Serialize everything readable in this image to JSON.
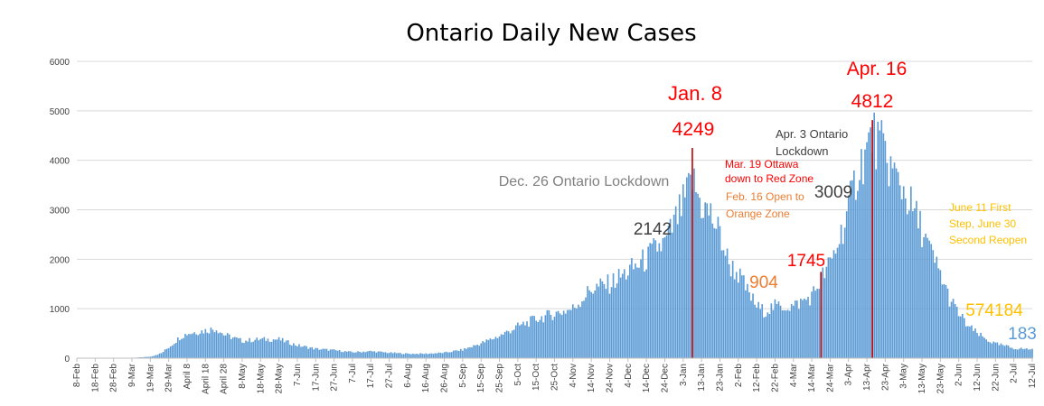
{
  "chart_data": {
    "type": "bar",
    "title": "Ontario Daily New Cases",
    "xlabel": "",
    "ylabel": "",
    "ylim": [
      0,
      6000
    ],
    "yticks": [
      0,
      1000,
      2000,
      3000,
      4000,
      5000,
      6000
    ],
    "grid": true,
    "start_date": "2020-02-08",
    "end_date": "2021-07-12",
    "xtick_labels": [
      "8-Feb",
      "18-Feb",
      "28-Feb",
      "9-Mar",
      "19-Mar",
      "29-Mar",
      "April 8",
      "April 18",
      "April 28",
      "8-May",
      "18-May",
      "28-May",
      "7-Jun",
      "17-Jun",
      "27-Jun",
      "7-Jul",
      "17-Jul",
      "27-Jul",
      "6-Aug",
      "16-Aug",
      "26-Aug",
      "5-Sep",
      "15-Sep",
      "25-Sep",
      "5-Oct",
      "15-Oct",
      "25-Oct",
      "4-Nov",
      "14-Nov",
      "24-Nov",
      "4-Dec",
      "14-Dec",
      "24-Dec",
      "3-Jan",
      "13-Jan",
      "23-Jan",
      "2-Feb",
      "12-Feb",
      "22-Feb",
      "4-Mar",
      "14-Mar",
      "24-Mar",
      "3-Apr",
      "13-Apr",
      "23-Apr",
      "3-May",
      "13-May",
      "23-May",
      "2-Jun",
      "12-Jun",
      "22-Jun",
      "2-Jul",
      "12-Jul"
    ],
    "series": [
      {
        "color": "#5b9bd5",
        "anchors": [
          [
            "2020-02-08",
            0
          ],
          [
            "2020-02-28",
            2
          ],
          [
            "2020-03-09",
            5
          ],
          [
            "2020-03-19",
            30
          ],
          [
            "2020-03-25",
            100
          ],
          [
            "2020-03-30",
            250
          ],
          [
            "2020-04-04",
            420
          ],
          [
            "2020-04-08",
            500
          ],
          [
            "2020-04-18",
            560
          ],
          [
            "2020-04-24",
            600
          ],
          [
            "2020-04-28",
            480
          ],
          [
            "2020-05-08",
            350
          ],
          [
            "2020-05-18",
            380
          ],
          [
            "2020-05-28",
            380
          ],
          [
            "2020-06-07",
            260
          ],
          [
            "2020-06-17",
            190
          ],
          [
            "2020-06-27",
            160
          ],
          [
            "2020-07-07",
            120
          ],
          [
            "2020-07-17",
            140
          ],
          [
            "2020-07-27",
            110
          ],
          [
            "2020-08-06",
            90
          ],
          [
            "2020-08-16",
            90
          ],
          [
            "2020-08-26",
            110
          ],
          [
            "2020-09-05",
            170
          ],
          [
            "2020-09-15",
            300
          ],
          [
            "2020-09-25",
            450
          ],
          [
            "2020-10-05",
            640
          ],
          [
            "2020-10-15",
            790
          ],
          [
            "2020-10-25",
            900
          ],
          [
            "2020-11-04",
            1000
          ],
          [
            "2020-11-14",
            1400
          ],
          [
            "2020-11-24",
            1500
          ],
          [
            "2020-12-04",
            1750
          ],
          [
            "2020-12-14",
            2000
          ],
          [
            "2020-12-20",
            2250
          ],
          [
            "2020-12-24",
            2300
          ],
          [
            "2020-12-29",
            2700
          ],
          [
            "2021-01-03",
            3100
          ],
          [
            "2021-01-08",
            3600
          ],
          [
            "2021-01-13",
            3100
          ],
          [
            "2021-01-18",
            2900
          ],
          [
            "2021-01-23",
            2500
          ],
          [
            "2021-01-28",
            1900
          ],
          [
            "2021-02-02",
            1700
          ],
          [
            "2021-02-07",
            1350
          ],
          [
            "2021-02-12",
            1050
          ],
          [
            "2021-02-16",
            950
          ],
          [
            "2021-02-22",
            1050
          ],
          [
            "2021-03-04",
            1050
          ],
          [
            "2021-03-14",
            1250
          ],
          [
            "2021-03-19",
            1600
          ],
          [
            "2021-03-24",
            1900
          ],
          [
            "2021-03-28",
            2300
          ],
          [
            "2021-04-03",
            3000
          ],
          [
            "2021-04-08",
            3800
          ],
          [
            "2021-04-13",
            4200
          ],
          [
            "2021-04-16",
            4500
          ],
          [
            "2021-04-20",
            4300
          ],
          [
            "2021-04-23",
            4100
          ],
          [
            "2021-04-28",
            3700
          ],
          [
            "2021-05-03",
            3400
          ],
          [
            "2021-05-08",
            3000
          ],
          [
            "2021-05-13",
            2600
          ],
          [
            "2021-05-18",
            2100
          ],
          [
            "2021-05-23",
            1700
          ],
          [
            "2021-05-28",
            1200
          ],
          [
            "2021-06-02",
            900
          ],
          [
            "2021-06-07",
            650
          ],
          [
            "2021-06-12",
            500
          ],
          [
            "2021-06-17",
            380
          ],
          [
            "2021-06-22",
            290
          ],
          [
            "2021-06-27",
            250
          ],
          [
            "2021-07-02",
            200
          ],
          [
            "2021-07-07",
            190
          ],
          [
            "2021-07-12",
            180
          ]
        ]
      }
    ],
    "markers": [
      {
        "date": "2021-01-08",
        "value": 4249,
        "color": "#c00000"
      },
      {
        "date": "2021-03-19",
        "value": 1745,
        "color": "#c00000"
      },
      {
        "date": "2021-04-16",
        "value": 4812,
        "color": "#c00000"
      }
    ],
    "annotations": [
      {
        "lines": [
          "Jan. 8"
        ],
        "color": "#ff0000"
      },
      {
        "lines": [
          "4249"
        ],
        "color": "#ff0000"
      },
      {
        "lines": [
          "Apr. 16"
        ],
        "color": "#ff0000"
      },
      {
        "lines": [
          "4812"
        ],
        "color": "#ff0000"
      },
      {
        "lines": [
          "Dec. 26 Ontario Lockdown"
        ],
        "color": "#808080"
      },
      {
        "lines": [
          "2142"
        ],
        "color": "#404040"
      },
      {
        "lines": [
          "Apr. 3 Ontario",
          "Lockdown"
        ],
        "color": "#404040"
      },
      {
        "lines": [
          "3009"
        ],
        "color": "#404040"
      },
      {
        "lines": [
          "Mar. 19 Ottawa",
          "down to Red Zone"
        ],
        "color": "#ff0000"
      },
      {
        "lines": [
          "Feb. 16 Open to",
          "Orange Zone"
        ],
        "color": "#ed7d31"
      },
      {
        "lines": [
          "904"
        ],
        "color": "#ed7d31"
      },
      {
        "lines": [
          "1745"
        ],
        "color": "#ff0000"
      },
      {
        "lines": [
          "June 11 First",
          "Step, June 30",
          "Second Reopen"
        ],
        "color": "#ffc000"
      },
      {
        "lines": [
          "574184"
        ],
        "color": "#ffc000"
      },
      {
        "lines": [
          "183"
        ],
        "color": "#5b9bd5"
      }
    ]
  }
}
